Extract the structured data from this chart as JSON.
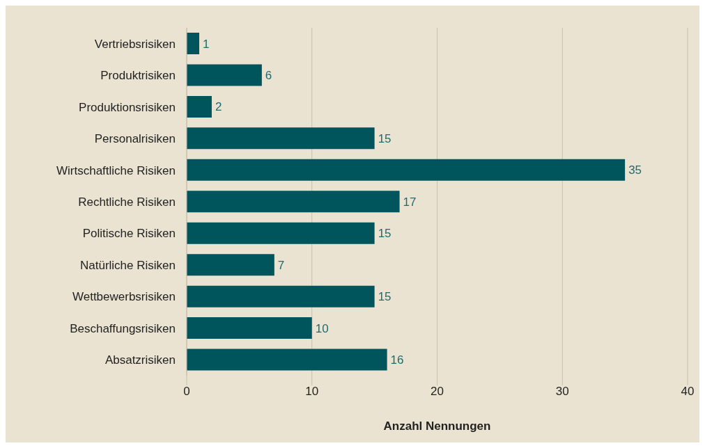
{
  "chart_data": {
    "type": "bar",
    "orientation": "horizontal",
    "xlabel": "Anzahl Nennungen",
    "categories": [
      "Vertriebsrisiken",
      "Produktrisiken",
      "Produktionsrisiken",
      "Personalrisiken",
      "Wirtschaftliche Risiken",
      "Rechtliche Risiken",
      "Politische Risiken",
      "Natürliche Risiken",
      "Wettbewerbsrisiken",
      "Beschaffungsrisiken",
      "Absatzrisiken"
    ],
    "values": [
      1,
      6,
      2,
      15,
      35,
      17,
      15,
      7,
      15,
      10,
      16
    ],
    "color": "#00545c",
    "xlim": [
      0,
      40
    ],
    "xticks": [
      0,
      10,
      20,
      30,
      40
    ],
    "grid": "x",
    "data_labels": true
  }
}
